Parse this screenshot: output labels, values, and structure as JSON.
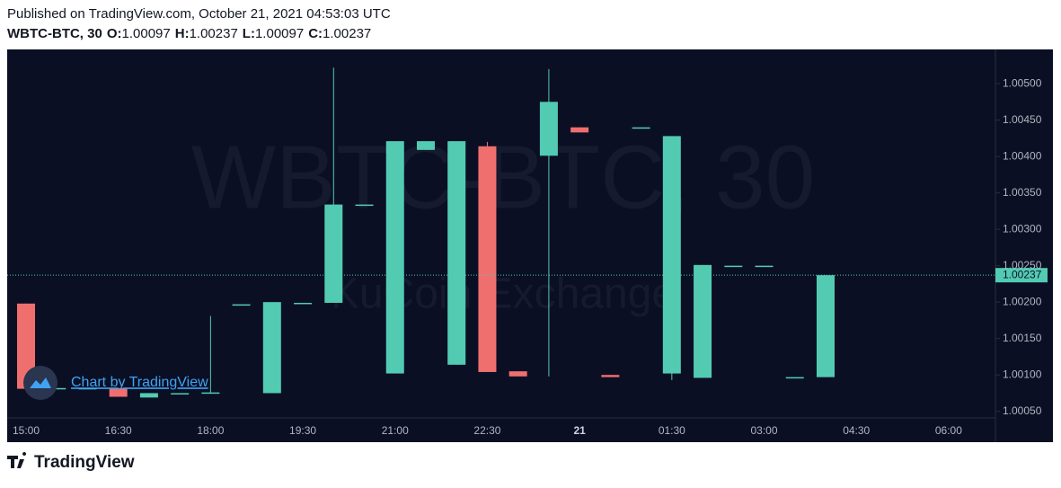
{
  "header": {
    "published": "Published on TradingView.com, October 21, 2021 04:53:03 UTC",
    "symbol": "WBTC-BTC, 30",
    "ohlc_legend": [
      {
        "label": "O:",
        "value": 1.00097
      },
      {
        "label": "H:",
        "value": 1.00237
      },
      {
        "label": "L:",
        "value": 1.00097
      },
      {
        "label": "C:",
        "value": 1.00237
      }
    ]
  },
  "chart_data": {
    "type": "candlestick",
    "watermark": [
      "WBTC-BTC, 30",
      "KuCoin Exchange"
    ],
    "x": [
      "15:00",
      null,
      null,
      "16:30",
      null,
      null,
      "18:00",
      null,
      null,
      "19:30",
      null,
      null,
      "21:00",
      null,
      null,
      "22:30",
      null,
      null,
      "21",
      null,
      null,
      "01:30",
      null,
      null,
      "03:00",
      null,
      null,
      "04:30",
      null,
      null,
      "06:00"
    ],
    "open": [
      1.00198,
      1.00082,
      1.00082,
      1.00082,
      1.00069,
      1.00075,
      1.00075,
      1.00197,
      1.00075,
      1.00199,
      1.00199,
      1.00334,
      1.00102,
      1.00409,
      1.00114,
      1.00414,
      1.00105,
      1.00401,
      1.0044,
      1.001,
      1.0044,
      1.00102,
      1.00096,
      1.0025,
      1.0025,
      1.00097,
      1.00097,
      null,
      null,
      null,
      null
    ],
    "high": [
      1.00198,
      1.00082,
      1.00082,
      1.00082,
      1.00075,
      1.00075,
      1.00181,
      1.00197,
      1.002,
      1.00199,
      1.00522,
      1.00334,
      1.00421,
      1.00421,
      1.00421,
      1.0042,
      1.00105,
      1.0052,
      1.0044,
      1.001,
      1.0044,
      1.00428,
      1.00251,
      1.0025,
      1.0025,
      1.00097,
      1.00237,
      null,
      null,
      null,
      null
    ],
    "low": [
      1.00081,
      1.00082,
      1.00082,
      1.0007,
      1.00069,
      1.00075,
      1.00075,
      1.00197,
      1.00075,
      1.00199,
      1.00199,
      1.00334,
      1.00102,
      1.00409,
      1.00114,
      1.00104,
      1.00098,
      1.00098,
      1.00433,
      1.00097,
      1.0044,
      1.00093,
      1.00096,
      1.0025,
      1.0025,
      1.00097,
      1.00097,
      null,
      null,
      null,
      null
    ],
    "close": [
      1.00081,
      1.00082,
      1.00082,
      1.0007,
      1.00075,
      1.00075,
      1.00076,
      1.00197,
      1.002,
      1.00199,
      1.00334,
      1.00334,
      1.00421,
      1.00421,
      1.00421,
      1.00104,
      1.00098,
      1.00475,
      1.00433,
      1.00097,
      1.0044,
      1.00428,
      1.00251,
      1.0025,
      1.0025,
      1.00097,
      1.00237,
      null,
      null,
      null,
      null
    ],
    "up_color": "#53cbb3",
    "down_color": "#ef6f6f",
    "ylim": [
      1.00041,
      1.00547
    ],
    "yticks": [
      {
        "value": 1.0005,
        "label": "1.00050"
      },
      {
        "value": 1.001,
        "label": "1.00100"
      },
      {
        "value": 1.0015,
        "label": "1.00150"
      },
      {
        "value": 1.002,
        "label": "1.00200"
      },
      {
        "value": 1.0025,
        "label": "1.00250"
      },
      {
        "value": 1.003,
        "label": "1.00300"
      },
      {
        "value": 1.0035,
        "label": "1.00350"
      },
      {
        "value": 1.004,
        "label": "1.00400"
      },
      {
        "value": 1.0045,
        "label": "1.00450"
      },
      {
        "value": 1.005,
        "label": "1.00500"
      }
    ],
    "last_price": 1.00237,
    "badge": "Chart by TradingView"
  },
  "footer": {
    "logo": "TradingView"
  }
}
